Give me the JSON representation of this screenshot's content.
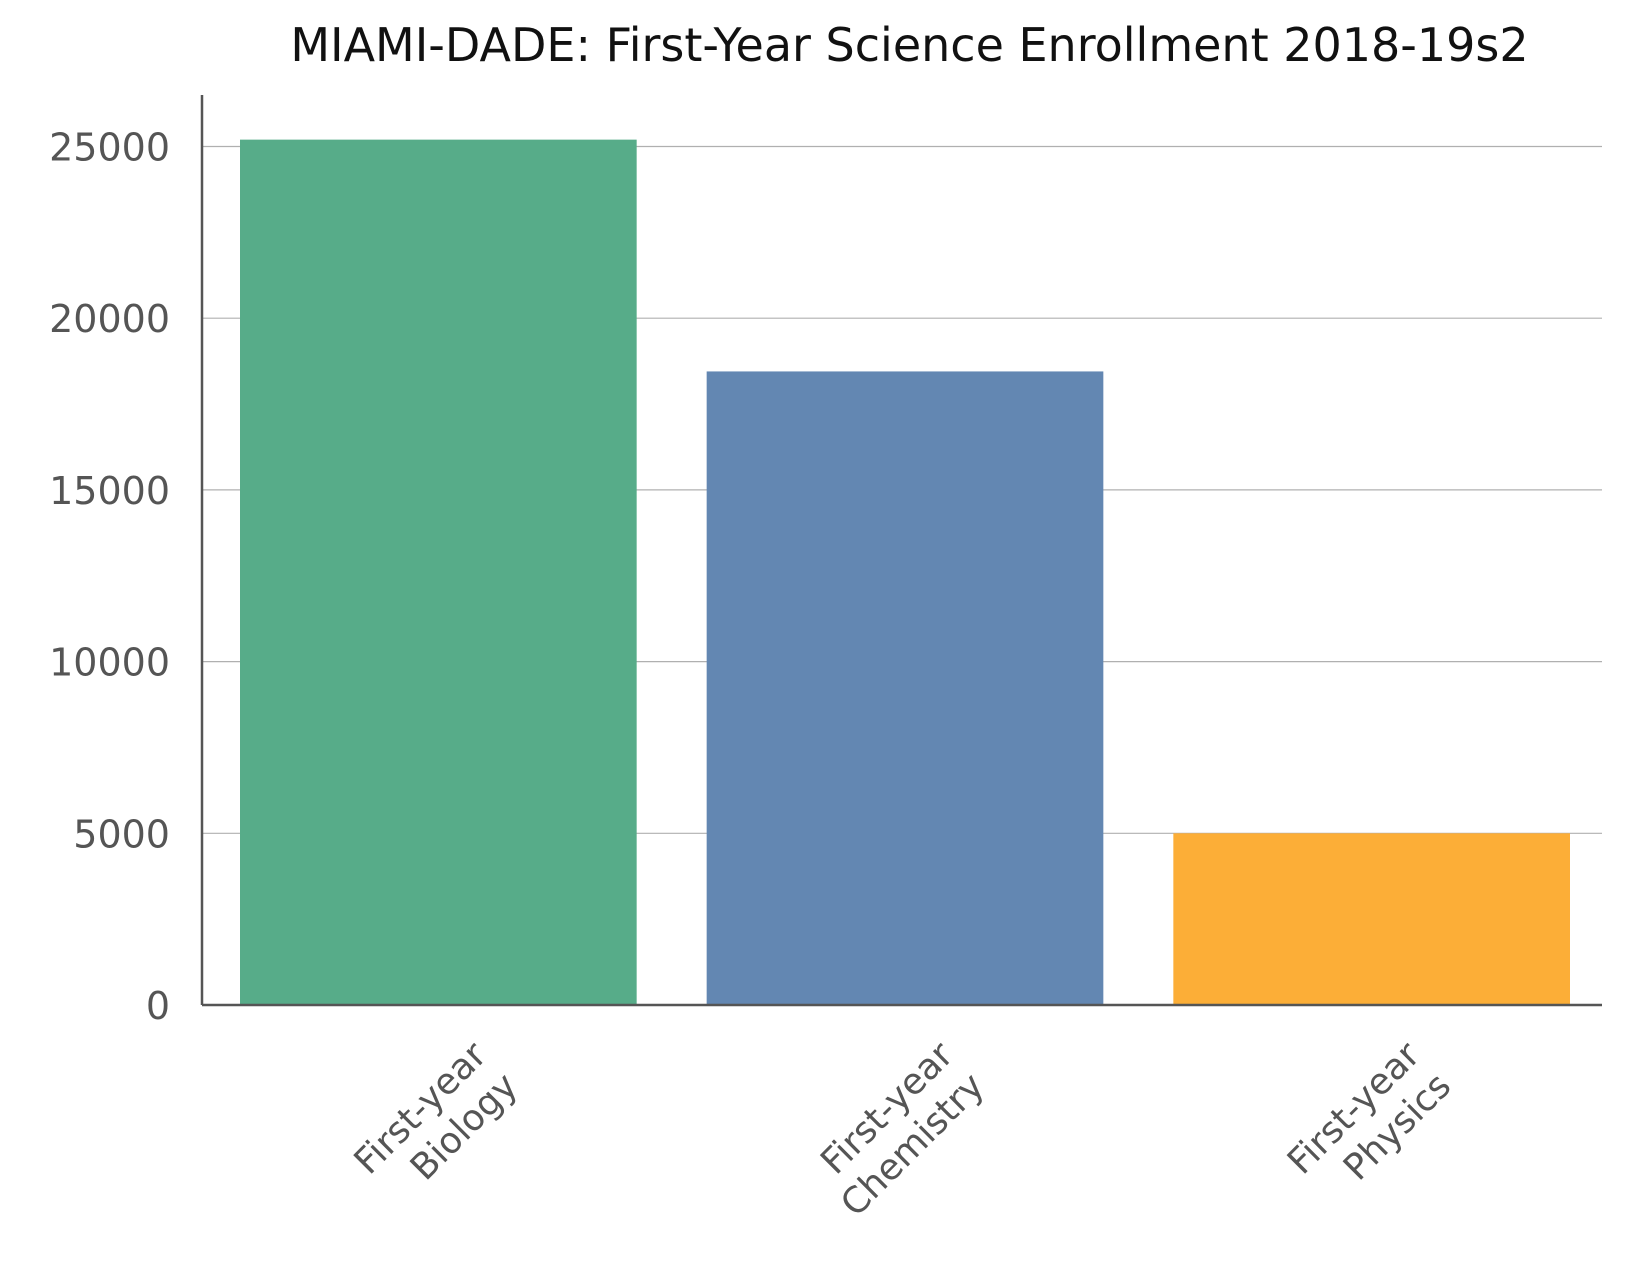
{
  "chart_data": {
    "type": "bar",
    "title": "MIAMI-DADE: First-Year Science Enrollment 2018-19s2",
    "xlabel": "",
    "ylabel": "",
    "categories": [
      [
        "First-year",
        "Biology"
      ],
      [
        "First-year",
        "Chemistry"
      ],
      [
        "First-year",
        "Physics"
      ]
    ],
    "values": [
      25200,
      18450,
      5000
    ],
    "colors": [
      "#57ac89",
      "#6387b2",
      "#fcae37"
    ],
    "ylim": [
      0,
      26500
    ],
    "yticks": [
      0,
      5000,
      10000,
      15000,
      20000,
      25000
    ],
    "grid": true,
    "legend": "none"
  }
}
